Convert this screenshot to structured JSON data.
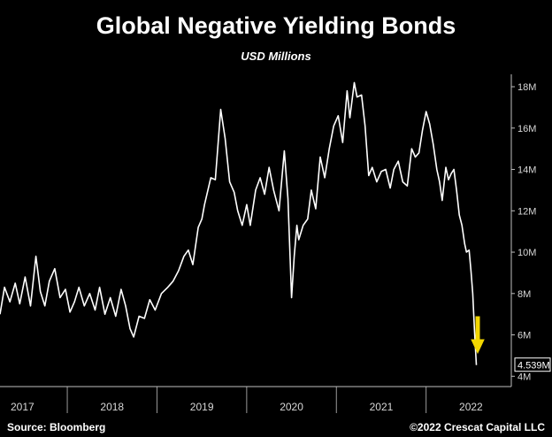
{
  "footer": {
    "source": "Source: Bloomberg",
    "copyright": "©2022 Crescat Capital LLC"
  },
  "colors": {
    "background": "#000000",
    "series": "#ffffff",
    "arrow": "#f2d600"
  },
  "chart_data": {
    "type": "line",
    "title": "Global Negative Yielding Bonds",
    "subtitle": "USD Millions",
    "xlabel": "",
    "ylabel": "",
    "y_axis_side": "right",
    "ylim": [
      3.5,
      18.6
    ],
    "yticks": [
      4,
      6,
      8,
      10,
      12,
      14,
      16,
      18
    ],
    "ytick_labels": [
      "4M",
      "6M",
      "8M",
      "10M",
      "12M",
      "14M",
      "16M",
      "18M"
    ],
    "xlim": [
      2016.75,
      2022.45
    ],
    "xticks": [
      2017,
      2018,
      2019,
      2020,
      2021,
      2022
    ],
    "xtick_labels": [
      "2017",
      "2018",
      "2019",
      "2020",
      "2021",
      "2022"
    ],
    "grid": false,
    "last_value_label": "4.539M",
    "annotation": "downward arrow",
    "series": [
      {
        "color": "#ffffff",
        "x": [
          2016.75,
          2016.8,
          2016.86,
          2016.92,
          2016.97,
          2017.03,
          2017.09,
          2017.15,
          2017.2,
          2017.25,
          2017.3,
          2017.36,
          2017.42,
          2017.48,
          2017.53,
          2017.58,
          2017.63,
          2017.69,
          2017.75,
          2017.81,
          2017.86,
          2017.92,
          2017.98,
          2018.04,
          2018.1,
          2018.15,
          2018.2,
          2018.24,
          2018.3,
          2018.36,
          2018.42,
          2018.48,
          2018.55,
          2018.62,
          2018.68,
          2018.74,
          2018.8,
          2018.85,
          2018.9,
          2018.96,
          2019.0,
          2019.03,
          2019.1,
          2019.15,
          2019.21,
          2019.26,
          2019.31,
          2019.36,
          2019.4,
          2019.45,
          2019.5,
          2019.54,
          2019.6,
          2019.65,
          2019.7,
          2019.75,
          2019.8,
          2019.86,
          2019.92,
          2019.96,
          2020.0,
          2020.03,
          2020.06,
          2020.08,
          2020.13,
          2020.18,
          2020.22,
          2020.27,
          2020.32,
          2020.37,
          2020.42,
          2020.47,
          2020.52,
          2020.57,
          2020.62,
          2020.65,
          2020.7,
          2020.73,
          2020.78,
          2020.82,
          2020.86,
          2020.9,
          2020.95,
          2021.0,
          2021.05,
          2021.1,
          2021.14,
          2021.19,
          2021.24,
          2021.29,
          2021.34,
          2021.38,
          2021.42,
          2021.46,
          2021.5,
          2021.54,
          2021.58,
          2021.62,
          2021.65,
          2021.68,
          2021.72,
          2021.75,
          2021.78,
          2021.81,
          2021.84,
          2021.87,
          2021.9,
          2021.93,
          2021.95,
          2021.98,
          2022.0,
          2022.02,
          2022.04,
          2022.06
        ],
        "y": [
          7.0,
          8.3,
          7.6,
          8.5,
          7.5,
          8.8,
          7.4,
          9.8,
          8.1,
          7.4,
          8.6,
          9.2,
          7.8,
          8.2,
          7.1,
          7.6,
          8.3,
          7.4,
          8.0,
          7.2,
          8.3,
          7.0,
          7.8,
          6.9,
          8.2,
          7.4,
          6.3,
          5.9,
          6.9,
          6.8,
          7.7,
          7.2,
          8.0,
          8.3,
          8.6,
          9.1,
          9.8,
          10.1,
          9.4,
          11.2,
          11.6,
          12.3,
          13.6,
          13.5,
          16.9,
          15.5,
          13.4,
          12.9,
          12.0,
          11.3,
          12.3,
          11.3,
          13.0,
          13.6,
          12.8,
          14.1,
          13.0,
          12.0,
          14.9,
          12.6,
          7.8,
          9.8,
          11.3,
          10.6,
          11.3,
          11.6,
          13.0,
          12.1,
          14.6,
          13.6,
          15.0,
          16.1,
          16.6,
          15.3,
          17.8,
          16.5,
          18.2,
          17.5,
          17.6,
          16.1,
          13.7,
          14.1,
          13.4,
          13.9,
          14.0,
          13.1,
          14.0,
          14.4,
          13.4,
          13.2,
          15.0,
          14.6,
          14.8,
          15.9,
          16.8,
          16.2,
          15.2,
          14.0,
          13.4,
          12.5,
          14.1,
          13.5,
          13.8,
          14.0,
          13.0,
          11.8,
          11.3,
          10.4,
          10.0,
          10.1,
          9.1,
          8.0,
          6.2,
          4.539
        ]
      }
    ]
  }
}
